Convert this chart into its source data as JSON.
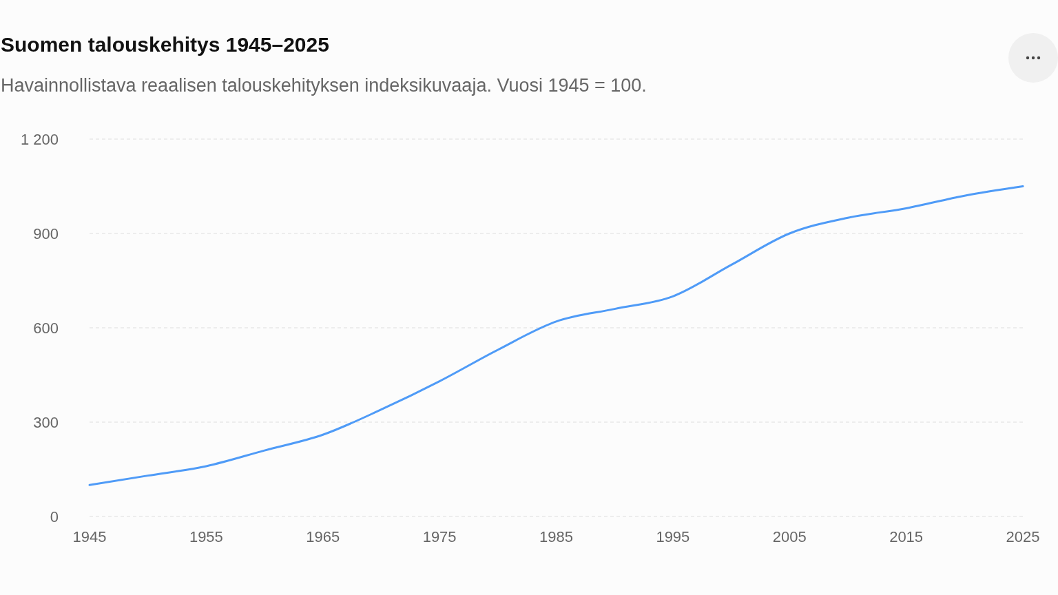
{
  "chart_data": {
    "type": "line",
    "title": "Suomen talouskehitys 1945–2025",
    "subtitle": "Havainnollistava reaalisen talouskehityksen indeksikuvaaja. Vuosi 1945 = 100.",
    "x": [
      1945,
      1950,
      1955,
      1960,
      1965,
      1970,
      1975,
      1980,
      1985,
      1990,
      1995,
      2000,
      2005,
      2010,
      2015,
      2020,
      2025
    ],
    "series": [
      {
        "color": "#4f9bf7",
        "values": [
          100,
          130,
          160,
          210,
          260,
          340,
          430,
          530,
          620,
          660,
          700,
          800,
          900,
          950,
          980,
          1020,
          1050
        ]
      }
    ],
    "xlim": [
      1945,
      2025
    ],
    "xticks": [
      1945,
      1955,
      1965,
      1975,
      1985,
      1995,
      2005,
      2015,
      2025
    ],
    "ylim": [
      0,
      1200
    ],
    "yticks": [
      0,
      300,
      600,
      900,
      {
        "value": 1200,
        "label": "1 200"
      }
    ],
    "grid": "y",
    "marker": "none",
    "line_style": "solid"
  }
}
